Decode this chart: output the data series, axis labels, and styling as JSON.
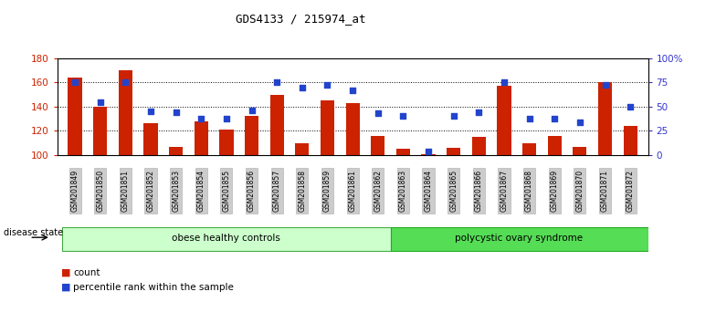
{
  "title": "GDS4133 / 215974_at",
  "samples": [
    "GSM201849",
    "GSM201850",
    "GSM201851",
    "GSM201852",
    "GSM201853",
    "GSM201854",
    "GSM201855",
    "GSM201856",
    "GSM201857",
    "GSM201858",
    "GSM201859",
    "GSM201861",
    "GSM201862",
    "GSM201863",
    "GSM201864",
    "GSM201865",
    "GSM201866",
    "GSM201867",
    "GSM201868",
    "GSM201869",
    "GSM201870",
    "GSM201871",
    "GSM201872"
  ],
  "counts": [
    164,
    140,
    170,
    126,
    107,
    128,
    121,
    132,
    150,
    110,
    145,
    143,
    116,
    105,
    101,
    106,
    115,
    157,
    110,
    116,
    107,
    160,
    124
  ],
  "percentiles": [
    75,
    55,
    75,
    45,
    44,
    38,
    38,
    46,
    75,
    70,
    72,
    67,
    43,
    40,
    4,
    40,
    44,
    75,
    38,
    38,
    34,
    72,
    50
  ],
  "ylim_left": [
    100,
    180
  ],
  "ylim_right": [
    0,
    100
  ],
  "yticks_left": [
    100,
    120,
    140,
    160,
    180
  ],
  "yticks_right": [
    0,
    25,
    50,
    75,
    100
  ],
  "ytick_labels_right": [
    "0",
    "25",
    "50",
    "75",
    "100%"
  ],
  "bar_color": "#cc2200",
  "dot_color": "#2244cc",
  "group1_label": "obese healthy controls",
  "group2_label": "polycystic ovary syndrome",
  "group1_count": 13,
  "group2_count": 10,
  "legend_count_label": "count",
  "legend_pct_label": "percentile rank within the sample",
  "disease_state_label": "disease state",
  "background_color": "#ffffff",
  "group1_bg": "#ccffcc",
  "group2_bg": "#55dd55",
  "xtick_bg": "#cccccc"
}
